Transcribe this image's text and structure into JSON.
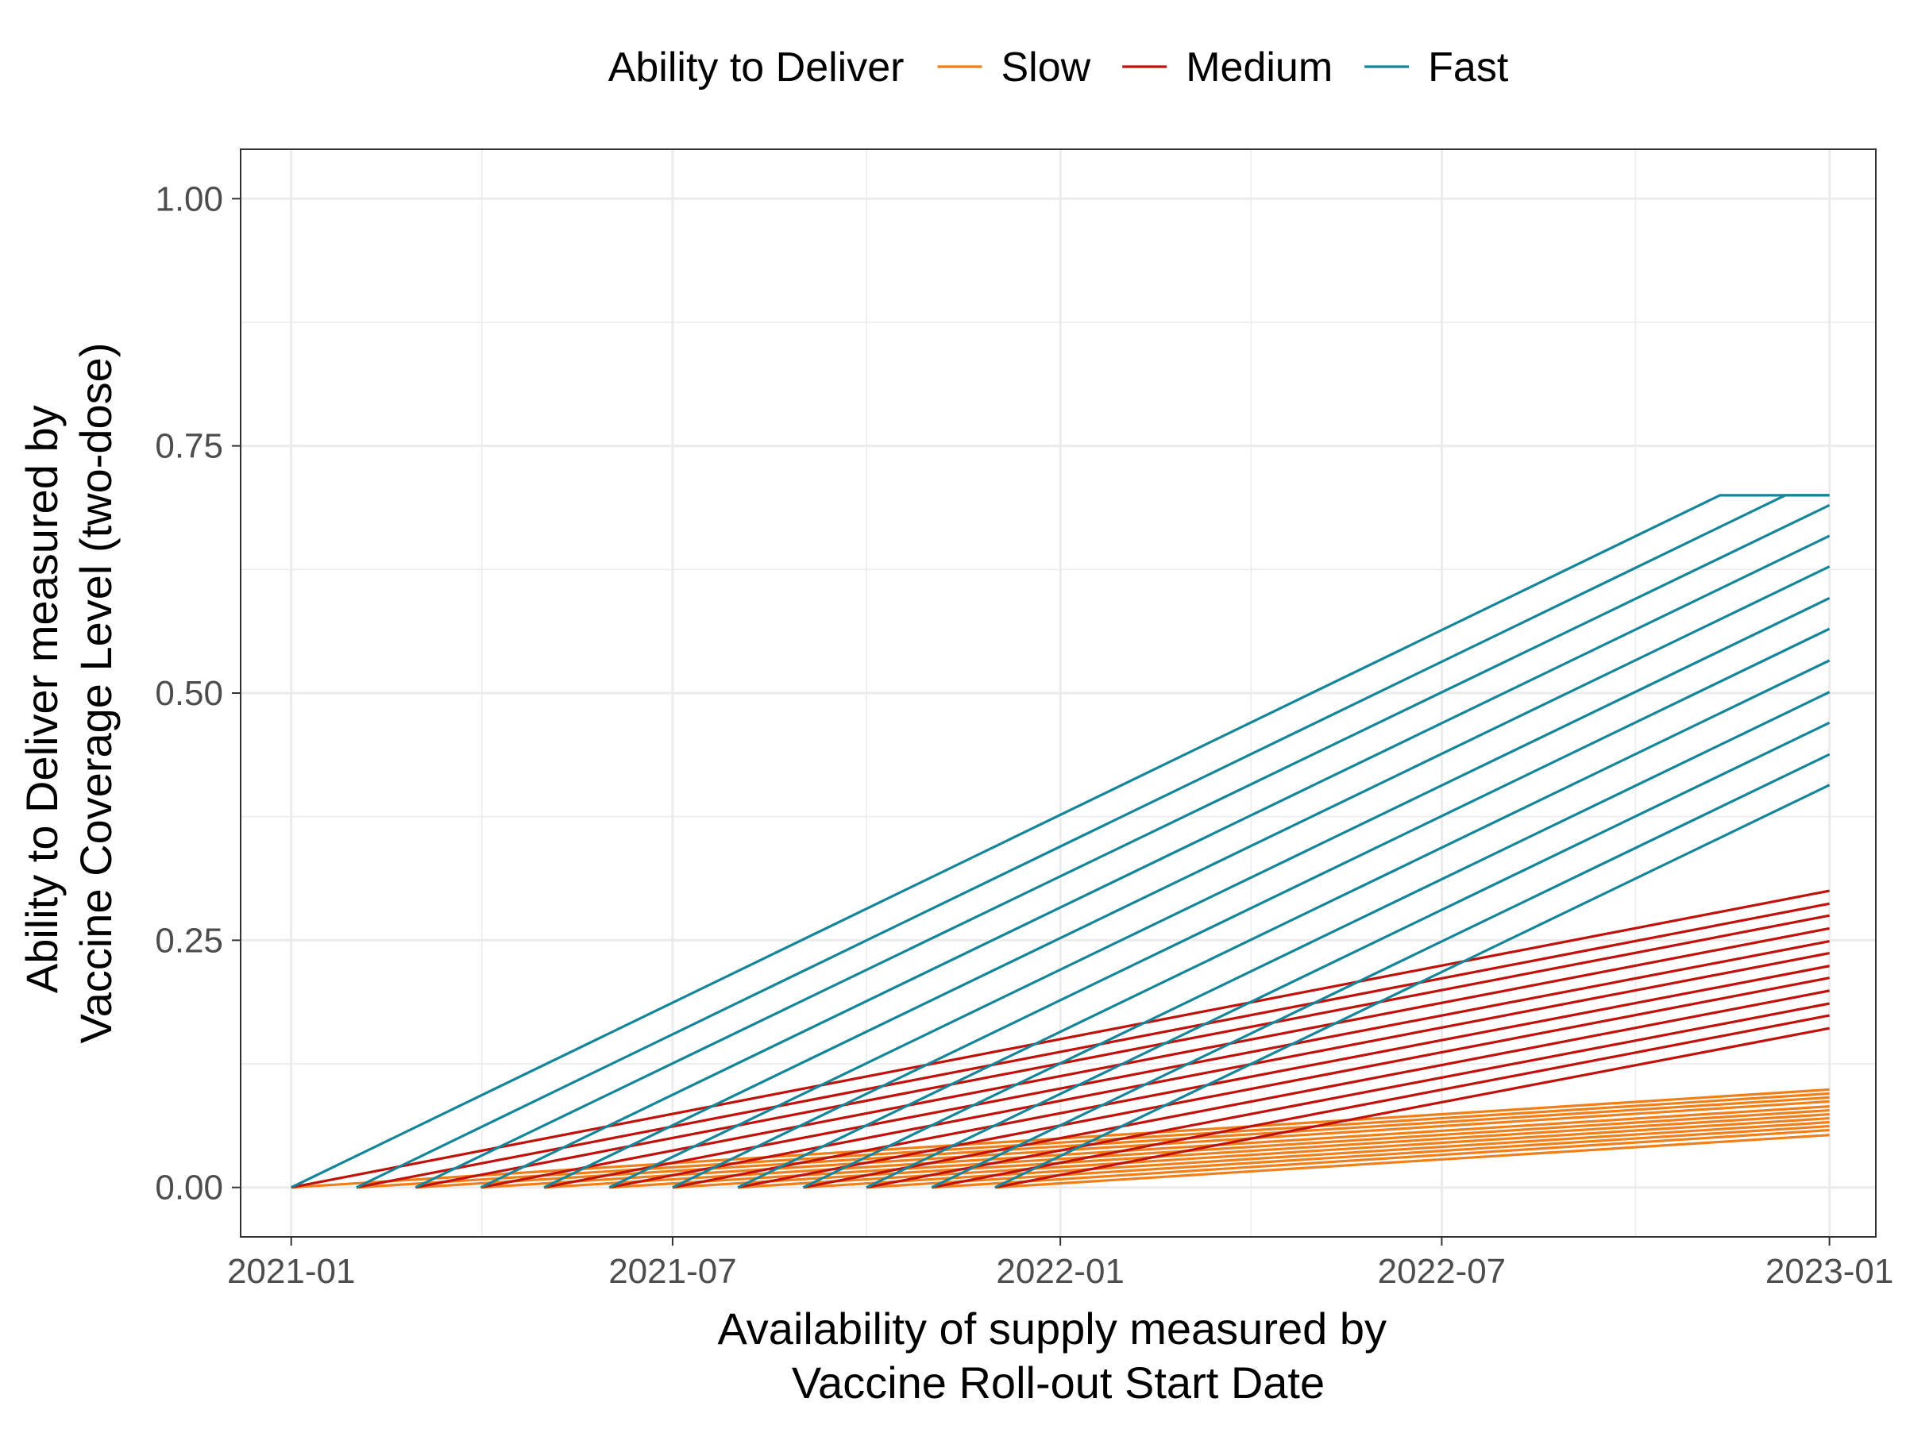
{
  "chart_data": {
    "type": "line",
    "xlabel": [
      "Availability of supply measured by",
      "Vaccine Roll-out Start Date"
    ],
    "ylabel": [
      "Ability to Deliver measured by",
      "Vaccine Coverage Level (two-dose)"
    ],
    "x_ticks": [
      "2021-01",
      "2021-07",
      "2022-01",
      "2022-07",
      "2023-01"
    ],
    "y_ticks": [
      "0.00",
      "0.25",
      "0.50",
      "0.75",
      "1.00"
    ],
    "xlim": [
      "2020-12-08",
      "2023-01-23"
    ],
    "ylim": [
      -0.05,
      1.05
    ],
    "grid": true,
    "legend": {
      "title": "Ability to Deliver",
      "position": "top",
      "entries": [
        "Slow",
        "Medium",
        "Fast"
      ]
    },
    "colors": {
      "Slow": "#f07f1a",
      "Medium": "#c0120b",
      "Fast": "#15869a"
    },
    "series_end_date": "2023-01-01",
    "start_dates": [
      "2021-01-01",
      "2021-02-01",
      "2021-03-01",
      "2021-04-01",
      "2021-05-01",
      "2021-06-01",
      "2021-07-01",
      "2021-08-01",
      "2021-09-01",
      "2021-10-01",
      "2021-11-01",
      "2021-12-01"
    ],
    "series": [
      {
        "group": "Slow",
        "start": "2021-01-01",
        "points": [
          [
            "2021-01-01",
            0
          ],
          [
            "2023-01-01",
            0.099
          ]
        ]
      },
      {
        "group": "Slow",
        "start": "2021-02-01",
        "points": [
          [
            "2021-02-01",
            0
          ],
          [
            "2023-01-01",
            0.095
          ]
        ]
      },
      {
        "group": "Slow",
        "start": "2021-03-01",
        "points": [
          [
            "2021-03-01",
            0
          ],
          [
            "2023-01-01",
            0.091
          ]
        ]
      },
      {
        "group": "Slow",
        "start": "2021-04-01",
        "points": [
          [
            "2021-04-01",
            0
          ],
          [
            "2023-01-01",
            0.087
          ]
        ]
      },
      {
        "group": "Slow",
        "start": "2021-05-01",
        "points": [
          [
            "2021-05-01",
            0
          ],
          [
            "2023-01-01",
            0.082
          ]
        ]
      },
      {
        "group": "Slow",
        "start": "2021-06-01",
        "points": [
          [
            "2021-06-01",
            0
          ],
          [
            "2023-01-01",
            0.078
          ]
        ]
      },
      {
        "group": "Slow",
        "start": "2021-07-01",
        "points": [
          [
            "2021-07-01",
            0
          ],
          [
            "2023-01-01",
            0.074
          ]
        ]
      },
      {
        "group": "Slow",
        "start": "2021-08-01",
        "points": [
          [
            "2021-08-01",
            0
          ],
          [
            "2023-01-01",
            0.07
          ]
        ]
      },
      {
        "group": "Slow",
        "start": "2021-09-01",
        "points": [
          [
            "2021-09-01",
            0
          ],
          [
            "2023-01-01",
            0.066
          ]
        ]
      },
      {
        "group": "Slow",
        "start": "2021-10-01",
        "points": [
          [
            "2021-10-01",
            0
          ],
          [
            "2023-01-01",
            0.062
          ]
        ]
      },
      {
        "group": "Slow",
        "start": "2021-11-01",
        "points": [
          [
            "2021-11-01",
            0
          ],
          [
            "2023-01-01",
            0.058
          ]
        ]
      },
      {
        "group": "Slow",
        "start": "2021-12-01",
        "points": [
          [
            "2021-12-01",
            0
          ],
          [
            "2023-01-01",
            0.053
          ]
        ]
      },
      {
        "group": "Medium",
        "start": "2021-01-01",
        "points": [
          [
            "2021-01-01",
            0
          ],
          [
            "2023-01-01",
            0.3
          ]
        ]
      },
      {
        "group": "Medium",
        "start": "2021-02-01",
        "points": [
          [
            "2021-02-01",
            0
          ],
          [
            "2023-01-01",
            0.287
          ]
        ]
      },
      {
        "group": "Medium",
        "start": "2021-03-01",
        "points": [
          [
            "2021-03-01",
            0
          ],
          [
            "2023-01-01",
            0.275
          ]
        ]
      },
      {
        "group": "Medium",
        "start": "2021-04-01",
        "points": [
          [
            "2021-04-01",
            0
          ],
          [
            "2023-01-01",
            0.262
          ]
        ]
      },
      {
        "group": "Medium",
        "start": "2021-05-01",
        "points": [
          [
            "2021-05-01",
            0
          ],
          [
            "2023-01-01",
            0.249
          ]
        ]
      },
      {
        "group": "Medium",
        "start": "2021-06-01",
        "points": [
          [
            "2021-06-01",
            0
          ],
          [
            "2023-01-01",
            0.237
          ]
        ]
      },
      {
        "group": "Medium",
        "start": "2021-07-01",
        "points": [
          [
            "2021-07-01",
            0
          ],
          [
            "2023-01-01",
            0.224
          ]
        ]
      },
      {
        "group": "Medium",
        "start": "2021-08-01",
        "points": [
          [
            "2021-08-01",
            0
          ],
          [
            "2023-01-01",
            0.212
          ]
        ]
      },
      {
        "group": "Medium",
        "start": "2021-09-01",
        "points": [
          [
            "2021-09-01",
            0
          ],
          [
            "2023-01-01",
            0.199
          ]
        ]
      },
      {
        "group": "Medium",
        "start": "2021-10-01",
        "points": [
          [
            "2021-10-01",
            0
          ],
          [
            "2023-01-01",
            0.186
          ]
        ]
      },
      {
        "group": "Medium",
        "start": "2021-11-01",
        "points": [
          [
            "2021-11-01",
            0
          ],
          [
            "2023-01-01",
            0.174
          ]
        ]
      },
      {
        "group": "Medium",
        "start": "2021-12-01",
        "points": [
          [
            "2021-12-01",
            0
          ],
          [
            "2023-01-01",
            0.161
          ]
        ]
      },
      {
        "group": "Fast",
        "start": "2021-01-01",
        "points": [
          [
            "2021-01-01",
            0
          ],
          [
            "2022-11-10",
            0.7
          ],
          [
            "2023-01-01",
            0.7
          ]
        ]
      },
      {
        "group": "Fast",
        "start": "2021-02-01",
        "points": [
          [
            "2021-02-01",
            0
          ],
          [
            "2022-12-11",
            0.7
          ],
          [
            "2023-01-01",
            0.7
          ]
        ]
      },
      {
        "group": "Fast",
        "start": "2021-03-01",
        "points": [
          [
            "2021-03-01",
            0
          ],
          [
            "2023-01-01",
            0.69
          ]
        ]
      },
      {
        "group": "Fast",
        "start": "2021-04-01",
        "points": [
          [
            "2021-04-01",
            0
          ],
          [
            "2023-01-01",
            0.659
          ]
        ]
      },
      {
        "group": "Fast",
        "start": "2021-05-01",
        "points": [
          [
            "2021-05-01",
            0
          ],
          [
            "2023-01-01",
            0.628
          ]
        ]
      },
      {
        "group": "Fast",
        "start": "2021-06-01",
        "points": [
          [
            "2021-06-01",
            0
          ],
          [
            "2023-01-01",
            0.596
          ]
        ]
      },
      {
        "group": "Fast",
        "start": "2021-07-01",
        "points": [
          [
            "2021-07-01",
            0
          ],
          [
            "2023-01-01",
            0.565
          ]
        ]
      },
      {
        "group": "Fast",
        "start": "2021-08-01",
        "points": [
          [
            "2021-08-01",
            0
          ],
          [
            "2023-01-01",
            0.533
          ]
        ]
      },
      {
        "group": "Fast",
        "start": "2021-09-01",
        "points": [
          [
            "2021-09-01",
            0
          ],
          [
            "2023-01-01",
            0.501
          ]
        ]
      },
      {
        "group": "Fast",
        "start": "2021-10-01",
        "points": [
          [
            "2021-10-01",
            0
          ],
          [
            "2023-01-01",
            0.47
          ]
        ]
      },
      {
        "group": "Fast",
        "start": "2021-11-01",
        "points": [
          [
            "2021-11-01",
            0
          ],
          [
            "2023-01-01",
            0.438
          ]
        ]
      },
      {
        "group": "Fast",
        "start": "2021-12-01",
        "points": [
          [
            "2021-12-01",
            0
          ],
          [
            "2023-01-01",
            0.407
          ]
        ]
      }
    ]
  }
}
